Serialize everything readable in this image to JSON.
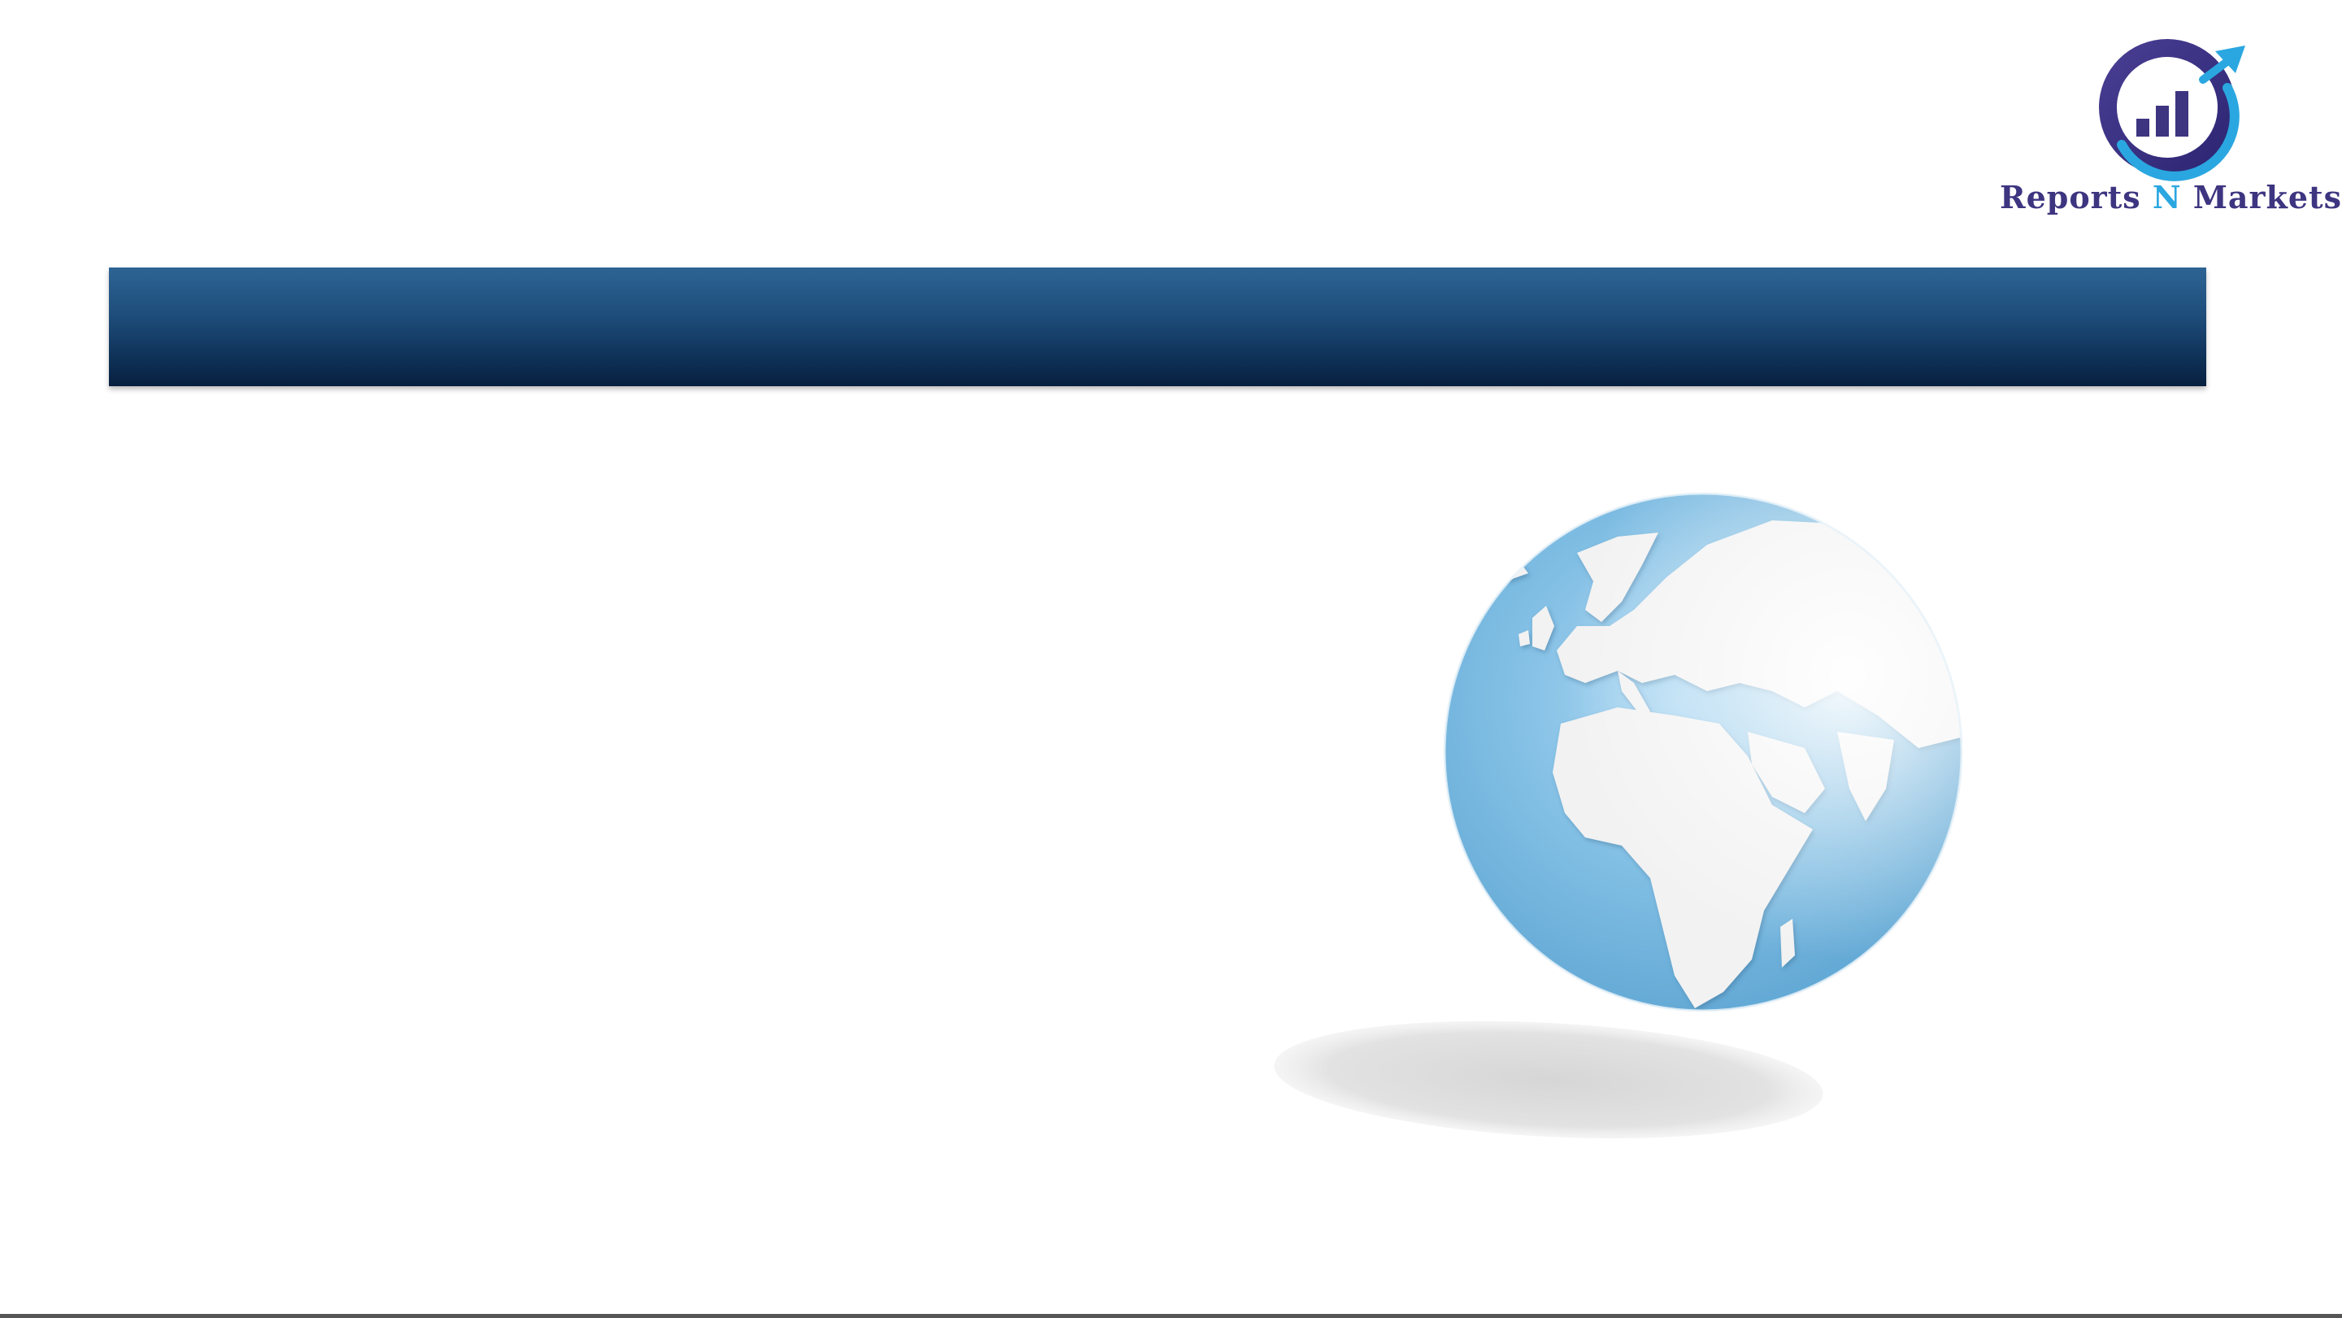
{
  "slide": {
    "banner_title": ""
  },
  "logo": {
    "brand_name_part1": "Reports ",
    "brand_name_accent": "N",
    "brand_name_part2": " Markets",
    "icon": "chart-arrow-circle-icon",
    "colors": {
      "primary": "#3d3580",
      "accent": "#2aa7e0"
    }
  },
  "illustration": {
    "icon": "globe-icon",
    "colors": {
      "ocean": "#7fbde3",
      "land": "#f2f2f2",
      "shadow": "#dcdcdc"
    }
  },
  "theme": {
    "banner_top": "#2d6494",
    "banner_bottom": "#071f3f"
  }
}
